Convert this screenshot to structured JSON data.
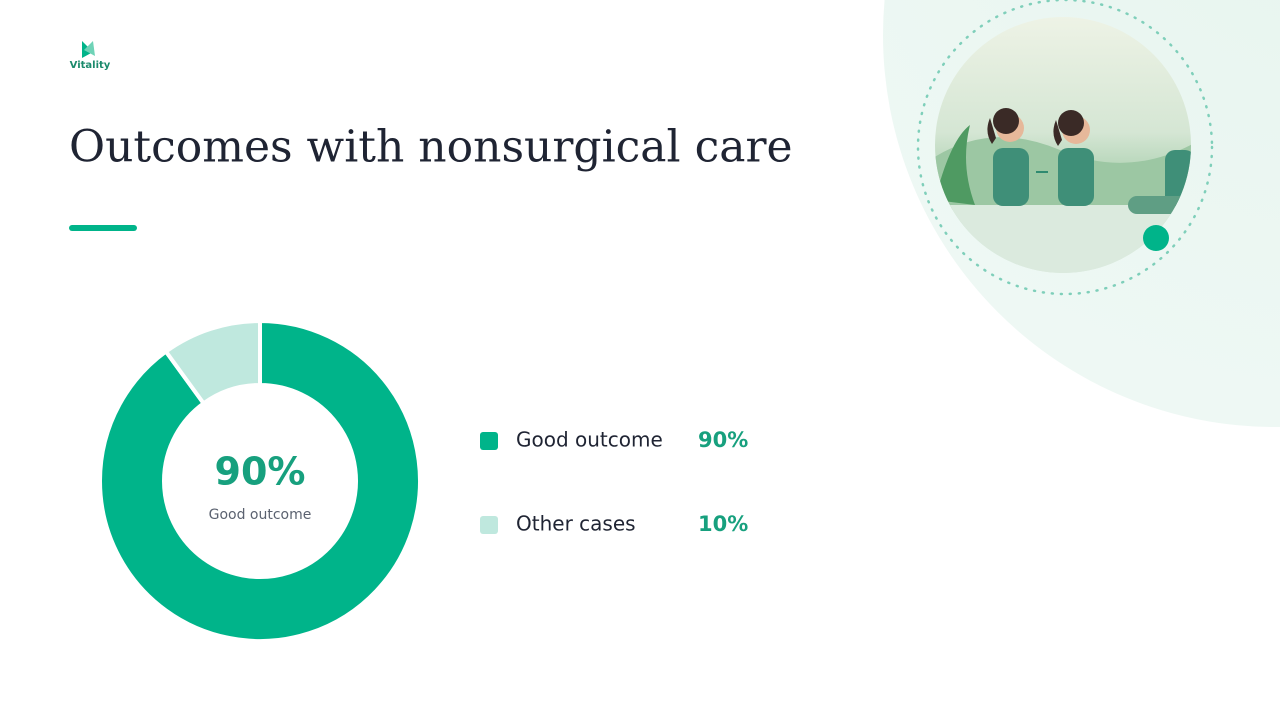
{
  "logo": "Vitality",
  "chart_data": {
    "type": "donut",
    "title": "Outcomes with nonsurgical care",
    "categories": [
      "Good outcome",
      "Other cases"
    ],
    "values": [
      90,
      10
    ],
    "value_labels": [
      "90%",
      "10%"
    ],
    "colors": [
      "#00b48a",
      "#bfe8de"
    ]
  }
}
